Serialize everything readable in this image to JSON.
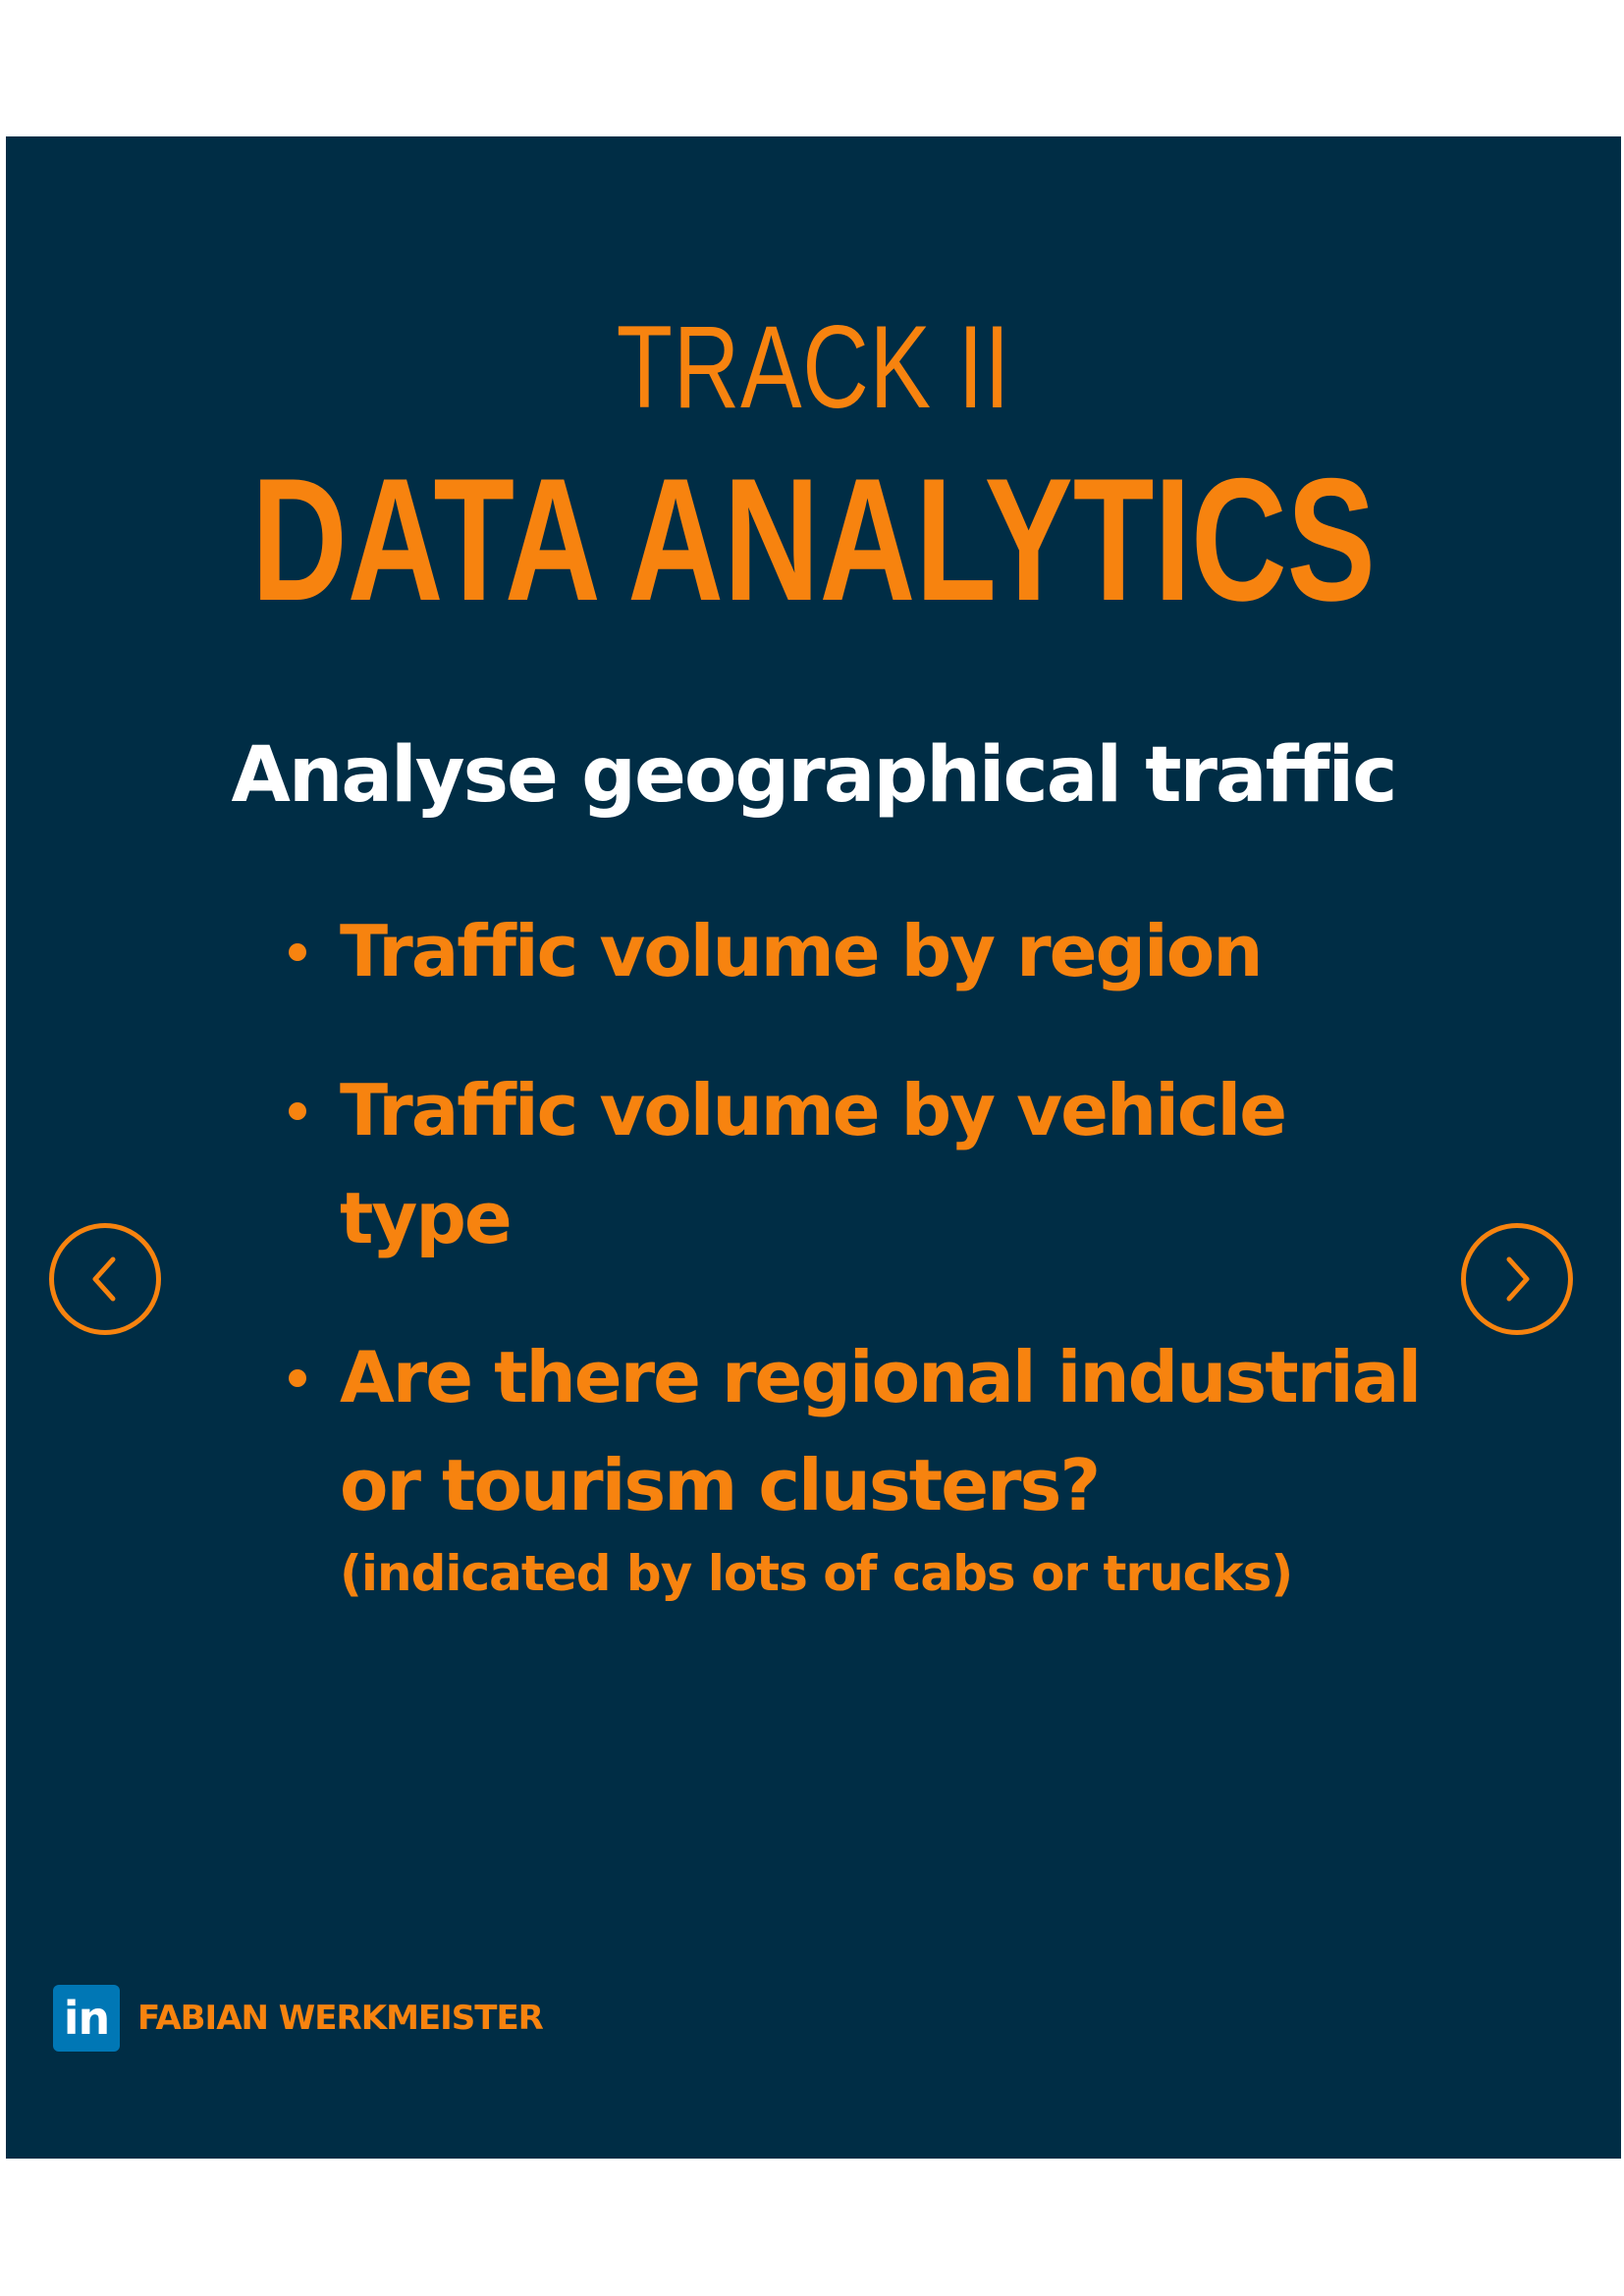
{
  "slide": {
    "track_label": "TRACK II",
    "track_title": "DATA ANALYTICS",
    "subtitle": "Analyse geographical traffic",
    "bullets": [
      {
        "text": "Traffic volume by region",
        "note": ""
      },
      {
        "text": "Traffic volume by vehicle type",
        "note": ""
      },
      {
        "text": "Are there regional industrial or tourism clusters?",
        "note": "(indicated by lots of cabs or trucks)"
      }
    ]
  },
  "navigation": {
    "prev_icon": "chevron-left-icon",
    "next_icon": "chevron-right-icon"
  },
  "footer": {
    "logo_text": "in",
    "author": "FABIAN WERKMEISTER"
  },
  "colors": {
    "background": "#002d45",
    "accent": "#f7830f",
    "text_light": "#ffffff",
    "linkedin": "#0077b5"
  }
}
